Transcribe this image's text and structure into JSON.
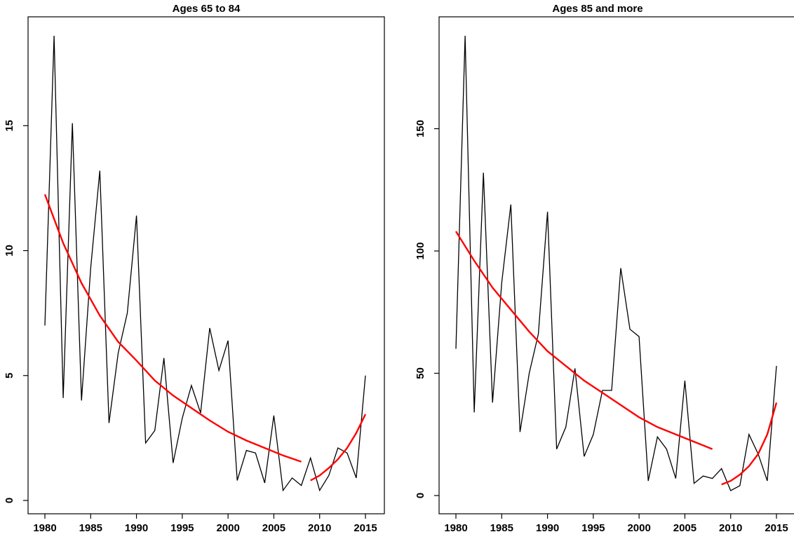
{
  "chart_data": [
    {
      "type": "line",
      "title": "Ages 65 to 84",
      "xlabel": "",
      "ylabel": "",
      "xlim": [
        1980,
        2015
      ],
      "ylim": [
        0,
        18.6
      ],
      "x_ticks": [
        1980,
        1985,
        1990,
        1995,
        2000,
        2005,
        2010,
        2015
      ],
      "y_ticks": [
        0,
        5,
        10,
        15
      ],
      "grid": false,
      "legend": "none",
      "colors": {
        "observed": "#000000",
        "trend": "#ff0000"
      },
      "series": [
        {
          "role": "observed",
          "x": [
            1980,
            1981,
            1982,
            1983,
            1984,
            1985,
            1986,
            1987,
            1988,
            1989,
            1990,
            1991,
            1992,
            1993,
            1994,
            1995,
            1996,
            1997,
            1998,
            1999,
            2000,
            2001,
            2002,
            2003,
            2004,
            2005,
            2006,
            2007,
            2008,
            2009,
            2010,
            2011,
            2012,
            2013,
            2014,
            2015
          ],
          "y": [
            7.0,
            18.6,
            4.1,
            15.1,
            4.0,
            9.3,
            13.2,
            3.1,
            5.9,
            7.5,
            11.4,
            2.3,
            2.8,
            5.7,
            1.5,
            3.3,
            4.6,
            3.5,
            6.9,
            5.2,
            6.4,
            0.8,
            2.0,
            1.9,
            0.7,
            3.4,
            0.4,
            0.9,
            0.6,
            1.7,
            0.4,
            1.0,
            2.1,
            1.9,
            0.9,
            5.0
          ]
        },
        {
          "role": "trend",
          "x": [
            1980,
            1982,
            1984,
            1986,
            1988,
            1990,
            1992,
            1994,
            1996,
            1998,
            2000,
            2002,
            2004,
            2006,
            2008
          ],
          "y": [
            12.25,
            10.3,
            8.7,
            7.4,
            6.35,
            5.6,
            4.8,
            4.2,
            3.7,
            3.2,
            2.75,
            2.4,
            2.1,
            1.8,
            1.55
          ]
        },
        {
          "role": "trend",
          "x": [
            2009,
            2010,
            2011,
            2012,
            2013,
            2014,
            2015
          ],
          "y": [
            0.8,
            1.0,
            1.3,
            1.65,
            2.1,
            2.7,
            3.45
          ]
        }
      ]
    },
    {
      "type": "line",
      "title": "Ages 85 and more",
      "xlabel": "",
      "ylabel": "",
      "xlim": [
        1980,
        2015
      ],
      "ylim": [
        0,
        188
      ],
      "x_ticks": [
        1980,
        1985,
        1990,
        1995,
        2000,
        2005,
        2010,
        2015
      ],
      "y_ticks": [
        0,
        50,
        100,
        150
      ],
      "grid": false,
      "legend": "none",
      "colors": {
        "observed": "#000000",
        "trend": "#ff0000"
      },
      "series": [
        {
          "role": "observed",
          "x": [
            1980,
            1981,
            1982,
            1983,
            1984,
            1985,
            1986,
            1987,
            1988,
            1989,
            1990,
            1991,
            1992,
            1993,
            1994,
            1995,
            1996,
            1997,
            1998,
            1999,
            2000,
            2001,
            2002,
            2003,
            2004,
            2005,
            2006,
            2007,
            2008,
            2009,
            2010,
            2011,
            2012,
            2013,
            2014,
            2015
          ],
          "y": [
            60,
            188,
            34,
            132,
            38,
            87,
            119,
            26,
            50,
            66,
            116,
            19,
            28,
            52,
            16,
            25,
            43,
            43,
            93,
            68,
            65,
            6,
            24,
            19,
            7,
            47,
            5,
            8,
            7,
            11,
            2,
            4,
            25,
            17,
            6,
            53
          ]
        },
        {
          "role": "trend",
          "x": [
            1980,
            1982,
            1984,
            1986,
            1988,
            1990,
            1992,
            1994,
            1996,
            1998,
            2000,
            2002,
            2004,
            2006,
            2008
          ],
          "y": [
            108,
            96,
            85,
            76,
            67,
            59,
            53,
            47,
            42,
            37,
            32,
            28,
            25,
            22,
            19
          ]
        },
        {
          "role": "trend",
          "x": [
            2009,
            2010,
            2011,
            2012,
            2013,
            2014,
            2015
          ],
          "y": [
            4.5,
            6,
            8.5,
            12,
            17,
            25,
            38
          ]
        }
      ]
    }
  ]
}
